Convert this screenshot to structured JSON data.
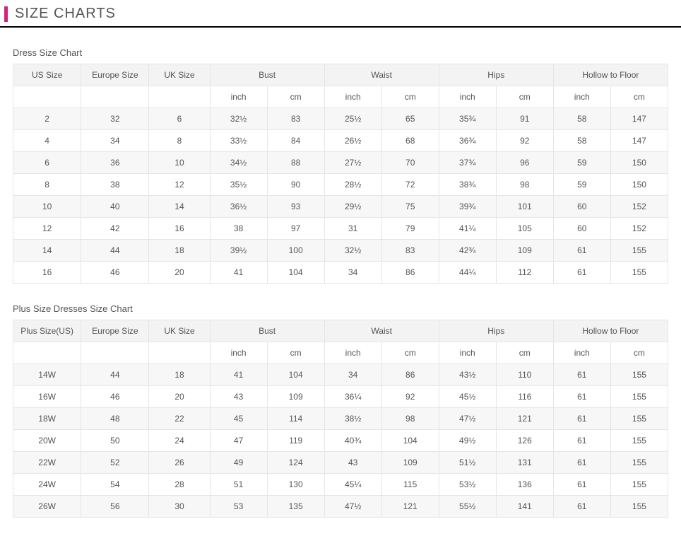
{
  "header": {
    "title": "SIZE CHARTS",
    "accent_color": "#d4237a",
    "underline_color": "#000000"
  },
  "tables": [
    {
      "title": "Dress Size Chart",
      "columns": {
        "size_label": "US Size",
        "europe": "Europe Size",
        "uk": "UK Size",
        "measurements": [
          "Bust",
          "Waist",
          "Hips",
          "Hollow to Floor"
        ],
        "units": [
          "inch",
          "cm"
        ]
      },
      "rows": [
        {
          "size": "2",
          "eu": "32",
          "uk": "6",
          "vals": [
            [
              "32½",
              "83"
            ],
            [
              "25½",
              "65"
            ],
            [
              "35¾",
              "91"
            ],
            [
              "58",
              "147"
            ]
          ]
        },
        {
          "size": "4",
          "eu": "34",
          "uk": "8",
          "vals": [
            [
              "33½",
              "84"
            ],
            [
              "26½",
              "68"
            ],
            [
              "36¾",
              "92"
            ],
            [
              "58",
              "147"
            ]
          ]
        },
        {
          "size": "6",
          "eu": "36",
          "uk": "10",
          "vals": [
            [
              "34½",
              "88"
            ],
            [
              "27½",
              "70"
            ],
            [
              "37¾",
              "96"
            ],
            [
              "59",
              "150"
            ]
          ]
        },
        {
          "size": "8",
          "eu": "38",
          "uk": "12",
          "vals": [
            [
              "35½",
              "90"
            ],
            [
              "28½",
              "72"
            ],
            [
              "38¾",
              "98"
            ],
            [
              "59",
              "150"
            ]
          ]
        },
        {
          "size": "10",
          "eu": "40",
          "uk": "14",
          "vals": [
            [
              "36½",
              "93"
            ],
            [
              "29½",
              "75"
            ],
            [
              "39¾",
              "101"
            ],
            [
              "60",
              "152"
            ]
          ]
        },
        {
          "size": "12",
          "eu": "42",
          "uk": "16",
          "vals": [
            [
              "38",
              "97"
            ],
            [
              "31",
              "79"
            ],
            [
              "41¼",
              "105"
            ],
            [
              "60",
              "152"
            ]
          ]
        },
        {
          "size": "14",
          "eu": "44",
          "uk": "18",
          "vals": [
            [
              "39½",
              "100"
            ],
            [
              "32½",
              "83"
            ],
            [
              "42¾",
              "109"
            ],
            [
              "61",
              "155"
            ]
          ]
        },
        {
          "size": "16",
          "eu": "46",
          "uk": "20",
          "vals": [
            [
              "41",
              "104"
            ],
            [
              "34",
              "86"
            ],
            [
              "44¼",
              "112"
            ],
            [
              "61",
              "155"
            ]
          ]
        }
      ]
    },
    {
      "title": "Plus Size Dresses Size Chart",
      "columns": {
        "size_label": "Plus Size(US)",
        "europe": "Europe Size",
        "uk": "UK Size",
        "measurements": [
          "Bust",
          "Waist",
          "Hips",
          "Hollow to Floor"
        ],
        "units": [
          "inch",
          "cm"
        ]
      },
      "rows": [
        {
          "size": "14W",
          "eu": "44",
          "uk": "18",
          "vals": [
            [
              "41",
              "104"
            ],
            [
              "34",
              "86"
            ],
            [
              "43½",
              "110"
            ],
            [
              "61",
              "155"
            ]
          ]
        },
        {
          "size": "16W",
          "eu": "46",
          "uk": "20",
          "vals": [
            [
              "43",
              "109"
            ],
            [
              "36¼",
              "92"
            ],
            [
              "45½",
              "116"
            ],
            [
              "61",
              "155"
            ]
          ]
        },
        {
          "size": "18W",
          "eu": "48",
          "uk": "22",
          "vals": [
            [
              "45",
              "114"
            ],
            [
              "38½",
              "98"
            ],
            [
              "47½",
              "121"
            ],
            [
              "61",
              "155"
            ]
          ]
        },
        {
          "size": "20W",
          "eu": "50",
          "uk": "24",
          "vals": [
            [
              "47",
              "119"
            ],
            [
              "40¾",
              "104"
            ],
            [
              "49½",
              "126"
            ],
            [
              "61",
              "155"
            ]
          ]
        },
        {
          "size": "22W",
          "eu": "52",
          "uk": "26",
          "vals": [
            [
              "49",
              "124"
            ],
            [
              "43",
              "109"
            ],
            [
              "51½",
              "131"
            ],
            [
              "61",
              "155"
            ]
          ]
        },
        {
          "size": "24W",
          "eu": "54",
          "uk": "28",
          "vals": [
            [
              "51",
              "130"
            ],
            [
              "45¼",
              "115"
            ],
            [
              "53½",
              "136"
            ],
            [
              "61",
              "155"
            ]
          ]
        },
        {
          "size": "26W",
          "eu": "56",
          "uk": "30",
          "vals": [
            [
              "53",
              "135"
            ],
            [
              "47½",
              "121"
            ],
            [
              "55½",
              "141"
            ],
            [
              "61",
              "155"
            ]
          ]
        }
      ]
    }
  ],
  "style": {
    "header_bg": "#f3f3f3",
    "stripe_bg": "#f7f7f7",
    "border_color": "#e5e5e5",
    "text_color": "#555555",
    "font_size_cell": 12,
    "font_size_title": 20
  }
}
